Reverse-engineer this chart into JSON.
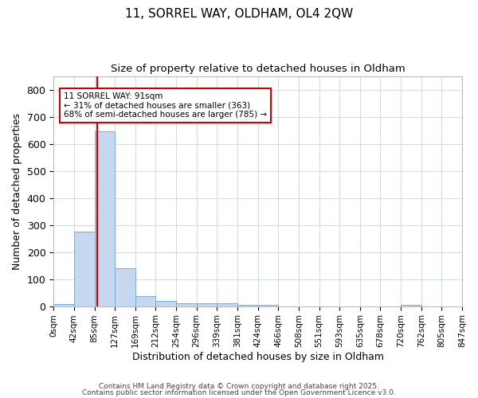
{
  "title1": "11, SORREL WAY, OLDHAM, OL4 2QW",
  "title2": "Size of property relative to detached houses in Oldham",
  "xlabel": "Distribution of detached houses by size in Oldham",
  "ylabel": "Number of detached properties",
  "bin_labels": [
    "0sqm",
    "42sqm",
    "85sqm",
    "127sqm",
    "169sqm",
    "212sqm",
    "254sqm",
    "296sqm",
    "339sqm",
    "381sqm",
    "424sqm",
    "466sqm",
    "508sqm",
    "551sqm",
    "593sqm",
    "635sqm",
    "678sqm",
    "720sqm",
    "762sqm",
    "805sqm",
    "847sqm"
  ],
  "bar_values": [
    8,
    275,
    645,
    140,
    38,
    20,
    10,
    10,
    10,
    5,
    5,
    0,
    0,
    0,
    0,
    0,
    0,
    4,
    0,
    0
  ],
  "bar_color": "#c5d8f0",
  "bar_edge_color": "#7aabdb",
  "property_line_color": "#cc0000",
  "annotation_title": "11 SORREL WAY: 91sqm",
  "annotation_line1": "← 31% of detached houses are smaller (363)",
  "annotation_line2": "68% of semi-detached houses are larger (785) →",
  "annotation_box_color": "#cc0000",
  "ylim_max": 850,
  "yticks": [
    0,
    100,
    200,
    300,
    400,
    500,
    600,
    700,
    800
  ],
  "grid_color": "#d0dce8",
  "bg_color": "#ffffff",
  "footer1": "Contains HM Land Registry data © Crown copyright and database right 2025.",
  "footer2": "Contains public sector information licensed under the Open Government Licence v3.0."
}
